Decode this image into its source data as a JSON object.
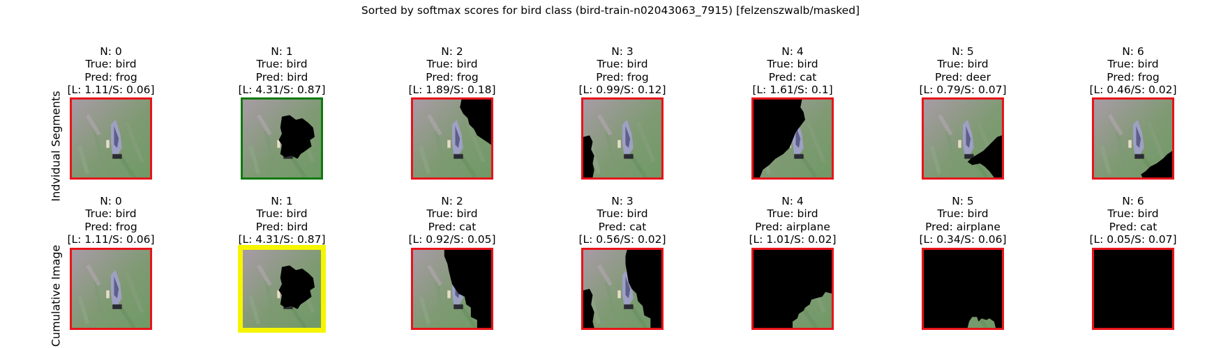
{
  "figure": {
    "title": "Sorted by softmax scores for bird class (bird-train-n02043063_7915) [felzenszwalb/masked]",
    "row_labels": [
      "Indvidual Segments",
      "Cumulative Image"
    ]
  },
  "rows": [
    {
      "name": "individual",
      "panels": [
        {
          "n": "N: 0",
          "true": "True: bird",
          "pred": "Pred: frog",
          "scores": "[L: 1.11/S: 0.06]",
          "border": "red",
          "mask": "none"
        },
        {
          "n": "N: 1",
          "true": "True: bird",
          "pred": "Pred: bird",
          "scores": "[L: 4.31/S: 0.87]",
          "border": "green",
          "mask": "center-hole"
        },
        {
          "n": "N: 2",
          "true": "True: bird",
          "pred": "Pred: frog",
          "scores": "[L: 1.89/S: 0.18]",
          "border": "red",
          "mask": "top-right"
        },
        {
          "n": "N: 3",
          "true": "True: bird",
          "pred": "Pred: frog",
          "scores": "[L: 0.99/S: 0.12]",
          "border": "red",
          "mask": "left-bottom"
        },
        {
          "n": "N: 4",
          "true": "True: bird",
          "pred": "Pred: cat",
          "scores": "[L: 1.61/S: 0.1]",
          "border": "red",
          "mask": "left-large"
        },
        {
          "n": "N: 5",
          "true": "True: bird",
          "pred": "Pred: deer",
          "scores": "[L: 0.79/S: 0.07]",
          "border": "red",
          "mask": "right-mid"
        },
        {
          "n": "N: 6",
          "true": "True: bird",
          "pred": "Pred: frog",
          "scores": "[L: 0.46/S: 0.02]",
          "border": "red",
          "mask": "bottom-right"
        }
      ]
    },
    {
      "name": "cumulative",
      "panels": [
        {
          "n": "N: 0",
          "true": "True: bird",
          "pred": "Pred: frog",
          "scores": "[L: 1.11/S: 0.06]",
          "border": "red",
          "mask": "none"
        },
        {
          "n": "N: 1",
          "true": "True: bird",
          "pred": "Pred: bird",
          "scores": "[L: 4.31/S: 0.87]",
          "border": "yellow",
          "mask": "center-hole"
        },
        {
          "n": "N: 2",
          "true": "True: bird",
          "pred": "Pred: cat",
          "scores": "[L: 0.92/S: 0.05]",
          "border": "red",
          "mask": "cum-2"
        },
        {
          "n": "N: 3",
          "true": "True: bird",
          "pred": "Pred: cat",
          "scores": "[L: 0.56/S: 0.02]",
          "border": "red",
          "mask": "cum-3"
        },
        {
          "n": "N: 4",
          "true": "True: bird",
          "pred": "Pred: airplane",
          "scores": "[L: 1.01/S: 0.02]",
          "border": "red",
          "mask": "cum-4"
        },
        {
          "n": "N: 5",
          "true": "True: bird",
          "pred": "Pred: airplane",
          "scores": "[L: 0.34/S: 0.06]",
          "border": "red",
          "mask": "cum-5"
        },
        {
          "n": "N: 6",
          "true": "True: bird",
          "pred": "Pred: cat",
          "scores": "[L: 0.05/S: 0.07]",
          "border": "red",
          "mask": "all"
        }
      ]
    }
  ],
  "colors": {
    "red": "#e8141a",
    "green": "#0e7a0d",
    "yellow": "#f5f500",
    "mask": "#000000",
    "bg_light": "#a89ba6",
    "bg_grass": "#7f9a73",
    "bird": "#9ea0c4"
  }
}
